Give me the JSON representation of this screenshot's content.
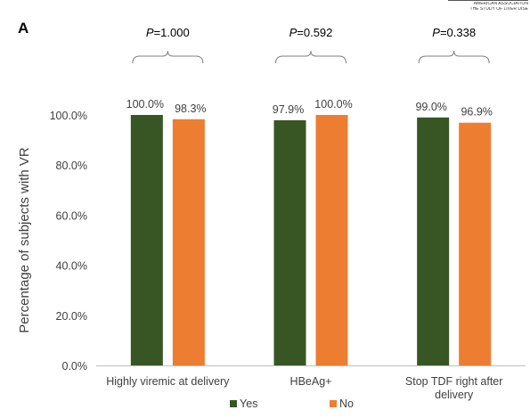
{
  "panel_label": "A",
  "header_caption": [
    "AMERICAN ASSOCIATION",
    "THE STUDY OF LIVER DISE"
  ],
  "colors": {
    "Yes": "#375623",
    "No": "#ed7d31",
    "axis": "#bfbfbf",
    "text": "#404040"
  },
  "chart_data": {
    "type": "bar",
    "categories": [
      [
        "Highly viremic at delivery"
      ],
      [
        "HBeAg+"
      ],
      [
        "Stop TDF right after",
        "delivery"
      ]
    ],
    "series": [
      {
        "name": "Yes",
        "values": [
          100.0,
          97.9,
          99.0
        ]
      },
      {
        "name": "No",
        "values": [
          98.3,
          100.0,
          96.9
        ]
      }
    ],
    "data_labels": [
      [
        "100.0%",
        "98.3%"
      ],
      [
        "97.9%",
        "100.0%"
      ],
      [
        "99.0%",
        "96.9%"
      ]
    ],
    "p_values": [
      {
        "prefix": "P",
        "text": "=1.000"
      },
      {
        "prefix": "P",
        "text": "=0.592"
      },
      {
        "prefix": "P",
        "text": "=0.338"
      }
    ],
    "ylabel": "Percentage of subjects with VR",
    "xlabel": "",
    "ylim": [
      0,
      100
    ],
    "yticks": [
      0,
      20,
      40,
      60,
      80,
      100
    ],
    "ytick_labels": [
      "0.0%",
      "20.0%",
      "40.0%",
      "60.0%",
      "80.0%",
      "100.0%"
    ],
    "grid": false,
    "legend": "bottom-center"
  }
}
